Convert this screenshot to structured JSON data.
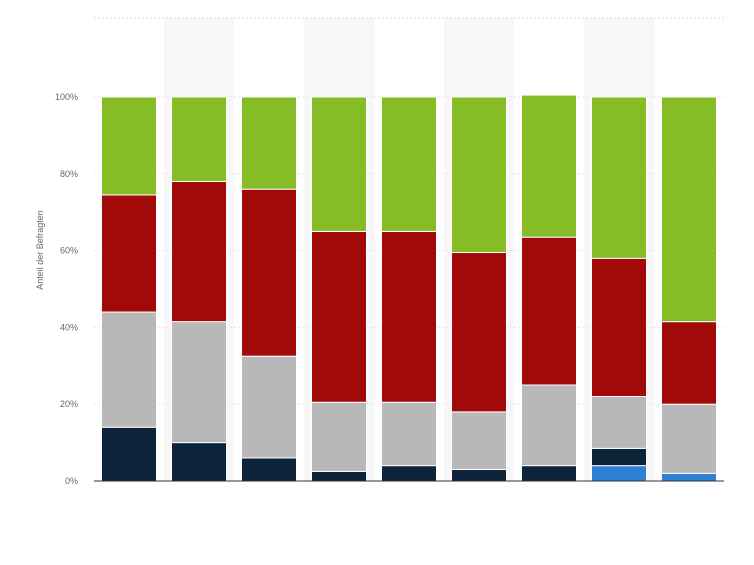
{
  "chart_data": {
    "type": "bar",
    "stacked": true,
    "normalized": true,
    "title": "",
    "xlabel": "",
    "ylabel": "Anteil der Befragten",
    "ylim": [
      0,
      100
    ],
    "y_ticks": [
      "0%",
      "20%",
      "40%",
      "60%",
      "80%",
      "100%"
    ],
    "grid": true,
    "legend": "none",
    "categories": [
      "",
      "",
      "",
      "",
      "",
      "",
      "",
      "",
      ""
    ],
    "series": [
      {
        "color": "#2f7ed8",
        "values": [
          0,
          0,
          0,
          0,
          0,
          0,
          0,
          4,
          2
        ]
      },
      {
        "color": "#0d233a",
        "values": [
          14,
          10,
          6,
          2.5,
          4,
          3,
          4,
          4.5,
          0
        ]
      },
      {
        "color": "#b8b8b8",
        "values": [
          30,
          31.5,
          26.5,
          18,
          16.5,
          15,
          21,
          13.5,
          18
        ]
      },
      {
        "color": "#a20a0a",
        "values": [
          30.5,
          36.5,
          43.5,
          44.5,
          44.5,
          41.5,
          38.5,
          36,
          21.5
        ]
      },
      {
        "color": "#86bc25",
        "values": [
          25.5,
          22,
          24,
          35,
          35,
          40.5,
          37,
          42,
          58.5
        ]
      }
    ]
  }
}
